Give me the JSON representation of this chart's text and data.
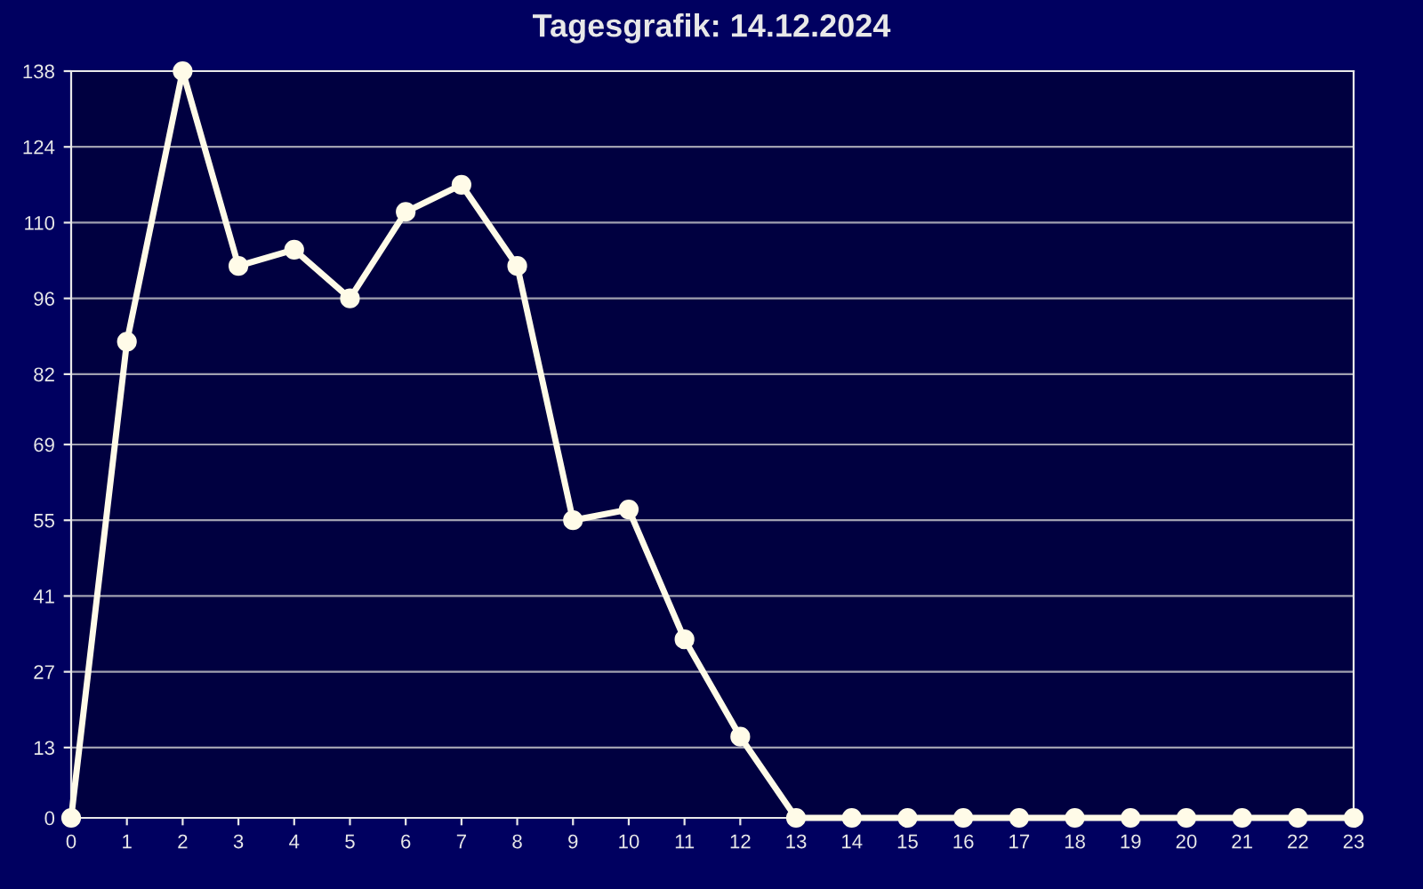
{
  "chart_data": {
    "type": "line",
    "title": "Tagesgrafik: 14.12.2024",
    "x": [
      0,
      1,
      2,
      3,
      4,
      5,
      6,
      7,
      8,
      9,
      10,
      11,
      12,
      13,
      14,
      15,
      16,
      17,
      18,
      19,
      20,
      21,
      22,
      23
    ],
    "series": [
      {
        "color": "#fffbe8",
        "values": [
          0,
          88,
          138,
          102,
          105,
          96,
          112,
          117,
          102,
          55,
          57,
          33,
          15,
          0,
          0,
          0,
          0,
          0,
          0,
          0,
          0,
          0,
          0,
          0
        ]
      }
    ],
    "xlim": [
      0,
      23
    ],
    "xticks": [
      0,
      1,
      2,
      3,
      4,
      5,
      6,
      7,
      8,
      9,
      10,
      11,
      12,
      13,
      14,
      15,
      16,
      17,
      18,
      19,
      20,
      21,
      22,
      23
    ],
    "ylim": [
      0,
      138
    ],
    "yticks": [
      0,
      13,
      27,
      41,
      55,
      69,
      82,
      96,
      110,
      124,
      138
    ],
    "grid": "y",
    "marker": "circle",
    "line_style": "solid"
  }
}
